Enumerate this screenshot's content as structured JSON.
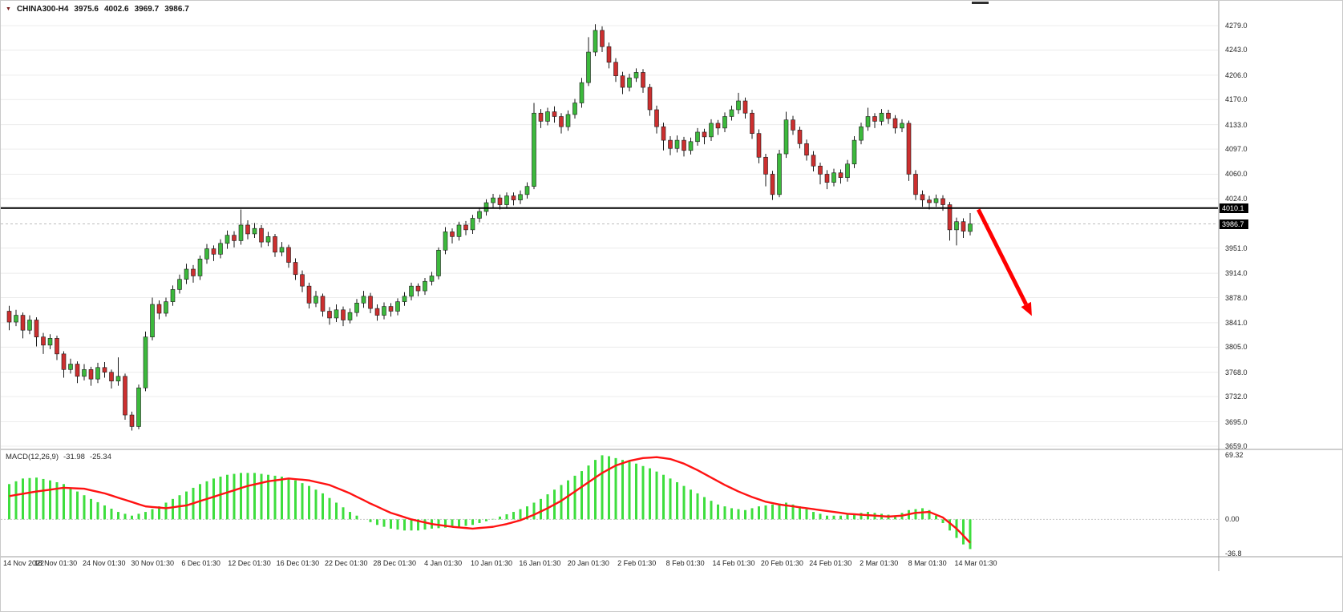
{
  "header": {
    "symbol_title": "CHINA300-H4",
    "open": "3975.6",
    "high": "4002.6",
    "low": "3969.7",
    "close": "3986.7"
  },
  "price_tags": {
    "hline": "4010.1",
    "bid": "3986.7"
  },
  "macd_label": {
    "name": "MACD(12,26,9)",
    "main": "-31.98",
    "signal": "-25.34"
  },
  "colors": {
    "bull": "#3cb93c",
    "bear": "#cc2f2f",
    "wick": "#1a1a1a",
    "macd_hist": "#3ede3e",
    "macd_signal": "#ff1212",
    "hline": "#000000",
    "bid_line": "#bdbdbd",
    "arrow": "#ff0000",
    "grid": "#ececec",
    "separator": "#9e9e9e",
    "axis_text": "#1f1f1f"
  },
  "chart_data": {
    "type": "candlestick",
    "title": "CHINA300-H4",
    "symbol": "CHINA300",
    "timeframe": "H4",
    "current_bar": {
      "open": 3975.6,
      "high": 4002.6,
      "low": 3969.7,
      "close": 3986.7
    },
    "y_axis": {
      "range": [
        3659.0,
        4279.0
      ],
      "ticks": [
        "4279.0",
        "4243.0",
        "4206.0",
        "4170.0",
        "4133.0",
        "4097.0",
        "4060.0",
        "4024.0",
        "3951.0",
        "3914.0",
        "3878.0",
        "3841.0",
        "3805.0",
        "3768.0",
        "3732.0",
        "3695.0",
        "3659.0"
      ]
    },
    "x_axis": {
      "labels": [
        "14 Nov 2022",
        "18 Nov 01:30",
        "24 Nov 01:30",
        "30 Nov 01:30",
        "6 Dec 01:30",
        "12 Dec 01:30",
        "16 Dec 01:30",
        "22 Dec 01:30",
        "28 Dec 01:30",
        "4 Jan 01:30",
        "10 Jan 01:30",
        "16 Jan 01:30",
        "20 Jan 01:30",
        "2 Feb 01:30",
        "8 Feb 01:30",
        "14 Feb 01:30",
        "20 Feb 01:30",
        "24 Feb 01:30",
        "2 Mar 01:30",
        "8 Mar 01:30",
        "14 Mar 01:30"
      ]
    },
    "hline": {
      "price": 4010.1
    },
    "bid": {
      "price": 3986.7
    },
    "annotation_arrow": {
      "from_bar": 142.2,
      "from_price": 4008,
      "to_bar": 149.2,
      "to_price": 3868
    },
    "candles": [
      [
        3858,
        3866,
        3830,
        3842
      ],
      [
        3842,
        3860,
        3836,
        3852
      ],
      [
        3852,
        3856,
        3818,
        3830
      ],
      [
        3830,
        3852,
        3824,
        3845
      ],
      [
        3845,
        3849,
        3806,
        3820
      ],
      [
        3820,
        3826,
        3795,
        3808
      ],
      [
        3808,
        3824,
        3802,
        3818
      ],
      [
        3818,
        3822,
        3786,
        3795
      ],
      [
        3795,
        3799,
        3760,
        3772
      ],
      [
        3772,
        3788,
        3766,
        3780
      ],
      [
        3780,
        3784,
        3752,
        3762
      ],
      [
        3762,
        3780,
        3756,
        3772
      ],
      [
        3772,
        3776,
        3748,
        3758
      ],
      [
        3758,
        3782,
        3752,
        3775
      ],
      [
        3775,
        3783,
        3760,
        3768
      ],
      [
        3768,
        3772,
        3744,
        3755
      ],
      [
        3755,
        3790,
        3748,
        3762
      ],
      [
        3762,
        3766,
        3698,
        3705
      ],
      [
        3705,
        3710,
        3682,
        3688
      ],
      [
        3688,
        3750,
        3684,
        3745
      ],
      [
        3745,
        3828,
        3740,
        3820
      ],
      [
        3820,
        3878,
        3815,
        3868
      ],
      [
        3868,
        3874,
        3846,
        3855
      ],
      [
        3855,
        3878,
        3850,
        3872
      ],
      [
        3872,
        3896,
        3866,
        3890
      ],
      [
        3890,
        3912,
        3884,
        3905
      ],
      [
        3905,
        3928,
        3898,
        3920
      ],
      [
        3920,
        3926,
        3900,
        3910
      ],
      [
        3910,
        3940,
        3904,
        3935
      ],
      [
        3935,
        3957,
        3928,
        3950
      ],
      [
        3950,
        3955,
        3932,
        3942
      ],
      [
        3942,
        3964,
        3936,
        3958
      ],
      [
        3958,
        3977,
        3950,
        3970
      ],
      [
        3970,
        3976,
        3952,
        3962
      ],
      [
        3962,
        4008,
        3956,
        3985
      ],
      [
        3985,
        3992,
        3964,
        3972
      ],
      [
        3972,
        3988,
        3966,
        3980
      ],
      [
        3980,
        3985,
        3952,
        3960
      ],
      [
        3960,
        3975,
        3954,
        3968
      ],
      [
        3968,
        3972,
        3938,
        3945
      ],
      [
        3945,
        3960,
        3939,
        3952
      ],
      [
        3952,
        3956,
        3922,
        3930
      ],
      [
        3930,
        3936,
        3904,
        3912
      ],
      [
        3912,
        3918,
        3886,
        3895
      ],
      [
        3895,
        3900,
        3862,
        3870
      ],
      [
        3870,
        3888,
        3864,
        3880
      ],
      [
        3880,
        3884,
        3850,
        3858
      ],
      [
        3858,
        3864,
        3838,
        3848
      ],
      [
        3848,
        3868,
        3842,
        3860
      ],
      [
        3860,
        3865,
        3836,
        3845
      ],
      [
        3845,
        3862,
        3840,
        3856
      ],
      [
        3856,
        3876,
        3850,
        3870
      ],
      [
        3870,
        3888,
        3863,
        3880
      ],
      [
        3880,
        3885,
        3855,
        3862
      ],
      [
        3862,
        3868,
        3844,
        3852
      ],
      [
        3852,
        3871,
        3846,
        3865
      ],
      [
        3865,
        3870,
        3850,
        3858
      ],
      [
        3858,
        3877,
        3852,
        3872
      ],
      [
        3872,
        3886,
        3866,
        3880
      ],
      [
        3880,
        3900,
        3874,
        3895
      ],
      [
        3895,
        3899,
        3880,
        3888
      ],
      [
        3888,
        3907,
        3882,
        3902
      ],
      [
        3902,
        3916,
        3896,
        3910
      ],
      [
        3910,
        3952,
        3905,
        3948
      ],
      [
        3948,
        3982,
        3942,
        3975
      ],
      [
        3975,
        3980,
        3958,
        3968
      ],
      [
        3968,
        3990,
        3962,
        3985
      ],
      [
        3985,
        3991,
        3970,
        3978
      ],
      [
        3978,
        4000,
        3972,
        3995
      ],
      [
        3995,
        4011,
        3989,
        4005
      ],
      [
        4005,
        4023,
        3999,
        4018
      ],
      [
        4018,
        4031,
        4010,
        4025
      ],
      [
        4025,
        4030,
        4008,
        4015
      ],
      [
        4015,
        4033,
        4009,
        4028
      ],
      [
        4028,
        4033,
        4014,
        4022
      ],
      [
        4022,
        4036,
        4016,
        4030
      ],
      [
        4030,
        4048,
        4024,
        4042
      ],
      [
        4042,
        4165,
        4038,
        4150
      ],
      [
        4150,
        4156,
        4128,
        4138
      ],
      [
        4138,
        4158,
        4132,
        4152
      ],
      [
        4152,
        4160,
        4136,
        4145
      ],
      [
        4145,
        4150,
        4120,
        4130
      ],
      [
        4130,
        4154,
        4124,
        4148
      ],
      [
        4148,
        4171,
        4142,
        4165
      ],
      [
        4165,
        4202,
        4158,
        4195
      ],
      [
        4195,
        4262,
        4190,
        4240
      ],
      [
        4240,
        4281,
        4234,
        4272
      ],
      [
        4272,
        4278,
        4240,
        4248
      ],
      [
        4248,
        4254,
        4216,
        4225
      ],
      [
        4225,
        4231,
        4196,
        4205
      ],
      [
        4205,
        4211,
        4178,
        4188
      ],
      [
        4188,
        4208,
        4182,
        4202
      ],
      [
        4202,
        4216,
        4196,
        4210
      ],
      [
        4210,
        4215,
        4180,
        4188
      ],
      [
        4188,
        4193,
        4146,
        4155
      ],
      [
        4155,
        4161,
        4120,
        4130
      ],
      [
        4130,
        4136,
        4095,
        4110
      ],
      [
        4110,
        4116,
        4088,
        4098
      ],
      [
        4098,
        4117,
        4092,
        4110
      ],
      [
        4110,
        4115,
        4086,
        4095
      ],
      [
        4095,
        4114,
        4089,
        4108
      ],
      [
        4108,
        4128,
        4102,
        4122
      ],
      [
        4122,
        4127,
        4104,
        4115
      ],
      [
        4115,
        4141,
        4109,
        4135
      ],
      [
        4135,
        4140,
        4118,
        4128
      ],
      [
        4128,
        4151,
        4122,
        4145
      ],
      [
        4145,
        4161,
        4139,
        4155
      ],
      [
        4155,
        4180,
        4149,
        4168
      ],
      [
        4168,
        4173,
        4142,
        4150
      ],
      [
        4150,
        4155,
        4112,
        4120
      ],
      [
        4120,
        4126,
        4076,
        4085
      ],
      [
        4085,
        4090,
        4042,
        4060
      ],
      [
        4060,
        4065,
        4022,
        4030
      ],
      [
        4030,
        4096,
        4026,
        4090
      ],
      [
        4090,
        4152,
        4084,
        4140
      ],
      [
        4140,
        4146,
        4118,
        4125
      ],
      [
        4125,
        4130,
        4098,
        4105
      ],
      [
        4105,
        4111,
        4080,
        4088
      ],
      [
        4088,
        4094,
        4064,
        4072
      ],
      [
        4072,
        4077,
        4045,
        4060
      ],
      [
        4060,
        4066,
        4038,
        4048
      ],
      [
        4048,
        4068,
        4042,
        4062
      ],
      [
        4062,
        4067,
        4046,
        4055
      ],
      [
        4055,
        4081,
        4049,
        4075
      ],
      [
        4075,
        4116,
        4069,
        4110
      ],
      [
        4110,
        4136,
        4104,
        4130
      ],
      [
        4130,
        4158,
        4124,
        4145
      ],
      [
        4145,
        4150,
        4128,
        4138
      ],
      [
        4138,
        4156,
        4132,
        4150
      ],
      [
        4150,
        4155,
        4134,
        4142
      ],
      [
        4142,
        4147,
        4120,
        4128
      ],
      [
        4128,
        4141,
        4122,
        4135
      ],
      [
        4135,
        4139,
        4050,
        4060
      ],
      [
        4060,
        4066,
        4022,
        4030
      ],
      [
        4030,
        4036,
        4012,
        4022
      ],
      [
        4022,
        4028,
        4008,
        4018
      ],
      [
        4018,
        4030,
        4012,
        4024
      ],
      [
        4024,
        4029,
        4006,
        4015
      ],
      [
        4015,
        4019,
        3962,
        3978
      ],
      [
        3978,
        3996,
        3955,
        3990
      ],
      [
        3990,
        3995,
        3966,
        3976
      ],
      [
        3975.6,
        4002.6,
        3969.7,
        3986.7
      ]
    ],
    "macd": {
      "type": "macd",
      "label": "MACD(12,26,9)",
      "main_value": -31.98,
      "signal_value": -25.34,
      "ylim": [
        -36.8,
        69.32
      ],
      "axis_ticks": [
        {
          "text": "69.32",
          "value": 69.32
        },
        {
          "text": "0.00",
          "value": 0
        },
        {
          "text": "-36.8",
          "value": -36.8
        }
      ],
      "histogram": [
        38,
        41,
        44,
        44.5,
        45,
        43.5,
        42,
        40,
        38,
        34,
        30,
        26,
        22,
        18.5,
        15,
        11.5,
        8,
        6,
        4,
        6,
        8,
        11,
        14,
        18,
        22,
        26,
        30,
        34,
        38,
        41,
        44,
        46,
        48,
        49,
        50,
        50,
        50,
        49,
        48,
        47,
        46,
        44,
        42,
        39,
        36,
        32,
        28,
        23,
        18,
        13,
        8,
        4,
        0,
        -3,
        -6,
        -8,
        -10,
        -11,
        -12,
        -12,
        -12,
        -11,
        -10,
        -9.5,
        -9,
        -8.5,
        -8,
        -7,
        -6,
        -4,
        -2,
        0.5,
        3,
        5.5,
        8,
        11,
        14,
        18,
        22,
        27,
        32,
        37,
        42,
        47,
        52,
        58,
        64,
        69,
        68,
        66,
        64,
        62,
        60,
        57.5,
        55,
        51.5,
        48,
        44,
        40,
        36,
        32,
        28,
        24,
        20,
        16,
        14,
        12,
        11,
        10,
        12,
        14,
        15,
        16,
        17,
        18,
        16,
        14,
        11,
        8,
        6,
        4,
        4,
        4,
        5,
        6,
        7,
        8,
        7,
        6,
        5,
        4,
        7,
        10,
        11,
        12,
        10,
        4,
        -4,
        -12,
        -20,
        -27,
        -31.98
      ],
      "signal": [
        25,
        26.3,
        27.5,
        28.8,
        30,
        31,
        32,
        33,
        34,
        33.7,
        33.3,
        33,
        31.3,
        29.7,
        28,
        25.7,
        23.3,
        21,
        18.7,
        16.3,
        14,
        13.3,
        12.7,
        12,
        13,
        14,
        15,
        17.3,
        19.7,
        22,
        24.3,
        26.7,
        29,
        31.3,
        33.7,
        36,
        37.7,
        39.3,
        41,
        42,
        43,
        44,
        43.3,
        42.7,
        42,
        40.3,
        38.7,
        37,
        34,
        31,
        28,
        24.3,
        20.7,
        17,
        13.7,
        10.3,
        7,
        4.7,
        2.3,
        0,
        -1.7,
        -3.3,
        -5,
        -6,
        -7,
        -8,
        -8.7,
        -9.3,
        -10,
        -9.3,
        -8.7,
        -8,
        -6.5,
        -5,
        -3,
        -1,
        2,
        5,
        8.5,
        12,
        16,
        20,
        25,
        30,
        35,
        40,
        45,
        50,
        54,
        58,
        60.5,
        63,
        64.5,
        66,
        66.5,
        67,
        66,
        65,
        62.5,
        60,
        56.5,
        53,
        49,
        45,
        41,
        37,
        33.5,
        30,
        27,
        24,
        21.5,
        19,
        17.5,
        16,
        15,
        14,
        13,
        12,
        11,
        10,
        9,
        8,
        7,
        6,
        5.5,
        5,
        4.5,
        4,
        3.5,
        3,
        3.5,
        4,
        5.5,
        7,
        7.5,
        8,
        5,
        2,
        -4,
        -10,
        -17.5,
        -25.34
      ]
    }
  }
}
